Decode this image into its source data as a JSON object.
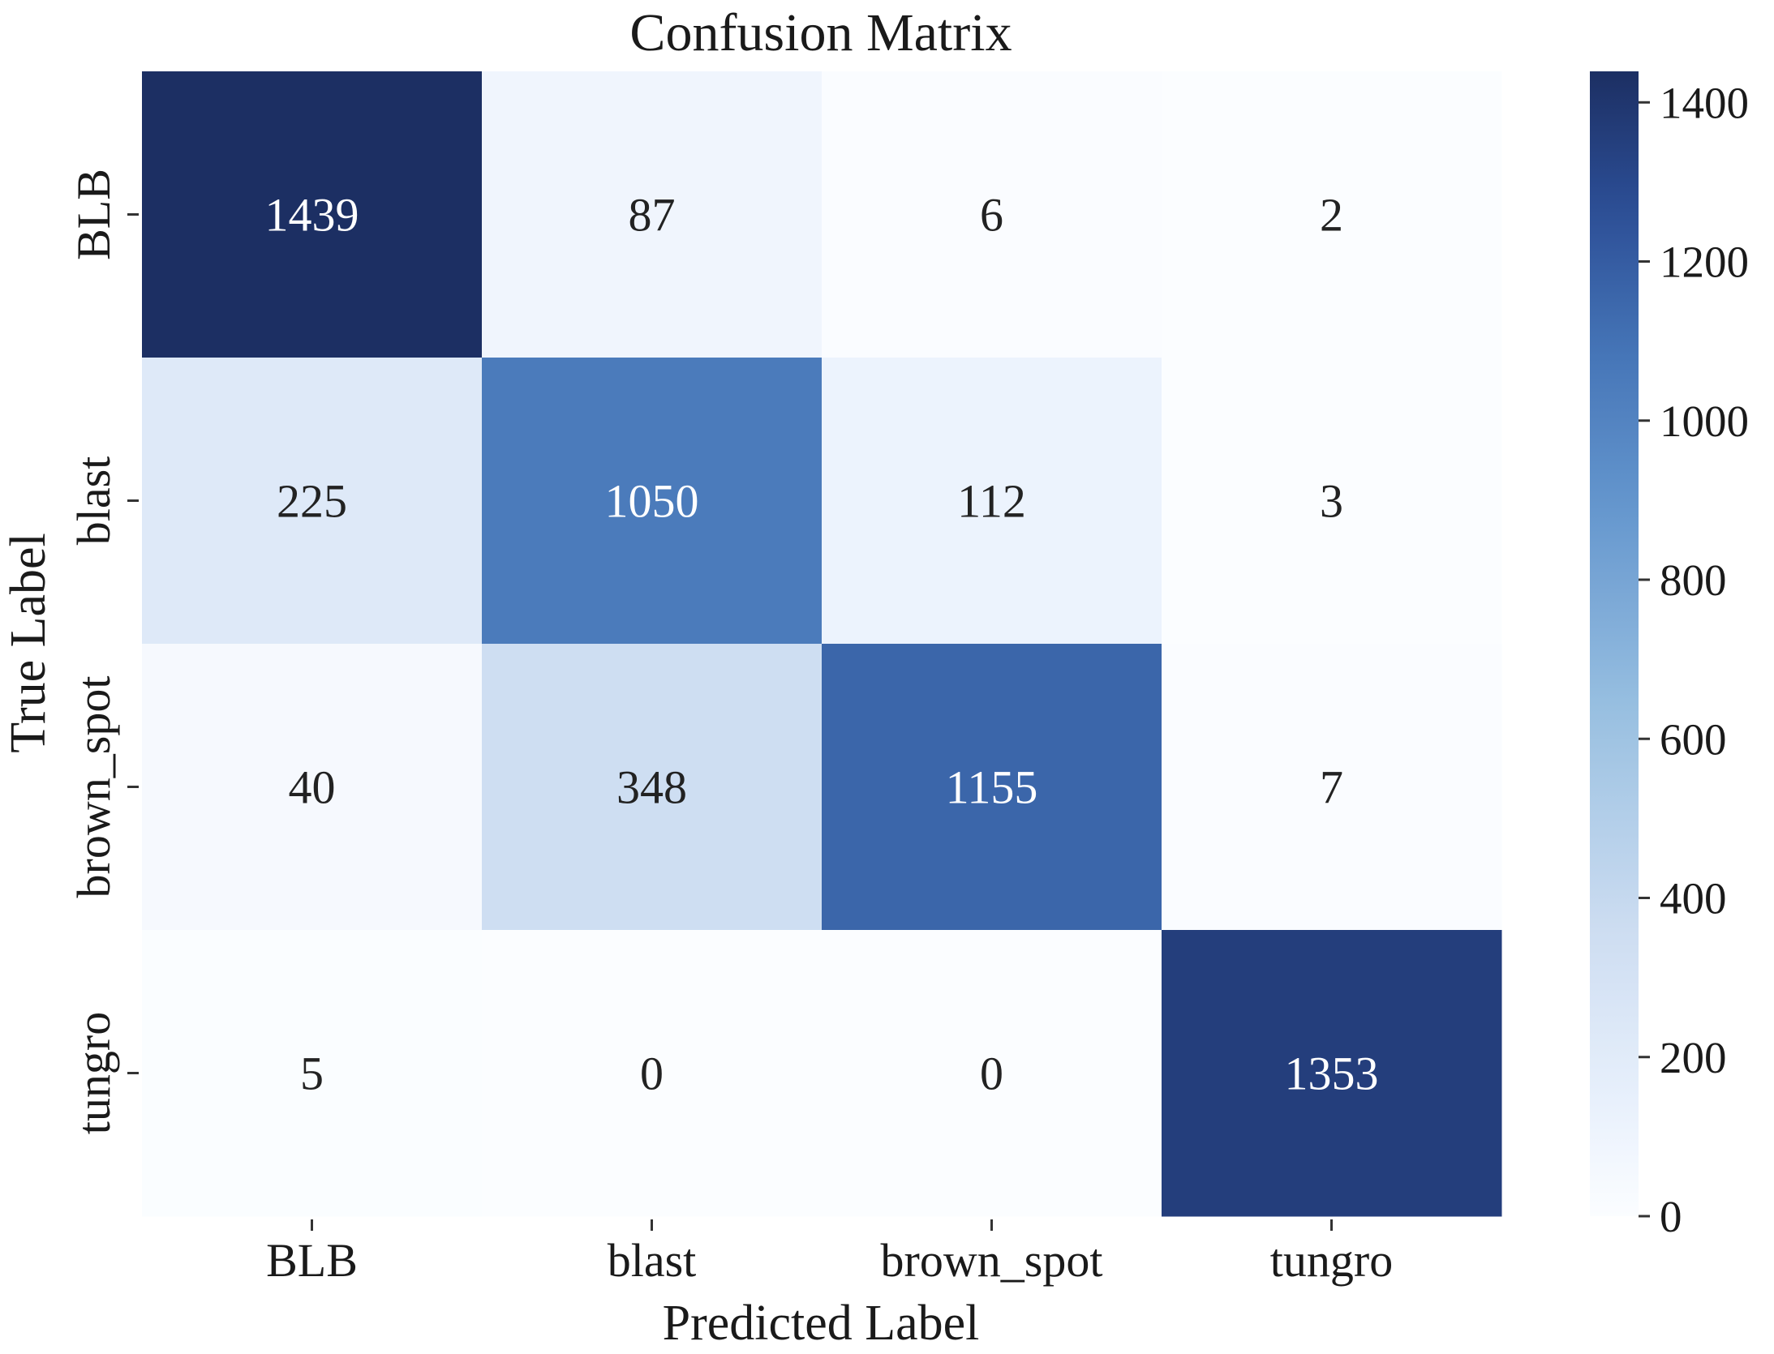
{
  "chart_data": {
    "type": "heatmap",
    "title": "Confusion Matrix",
    "xlabel": "Predicted Label",
    "ylabel": "True Label",
    "x_categories": [
      "BLB",
      "blast",
      "brown_spot",
      "tungro"
    ],
    "y_categories": [
      "BLB",
      "blast",
      "brown_spot",
      "tungro"
    ],
    "values": [
      [
        1439,
        87,
        6,
        2
      ],
      [
        225,
        1050,
        112,
        3
      ],
      [
        40,
        348,
        1155,
        7
      ],
      [
        5,
        0,
        0,
        1353
      ]
    ],
    "colorbar": {
      "min": 0,
      "max": 1439,
      "ticks": [
        "0",
        "200",
        "400",
        "600",
        "800",
        "1000",
        "1200",
        "1400"
      ]
    },
    "colormap": "Blues",
    "colors": {
      "low": "#fbfdff",
      "high": "#1c2f63",
      "dark_text": "#222222",
      "light_text": "#ffffff"
    },
    "grid": false
  }
}
